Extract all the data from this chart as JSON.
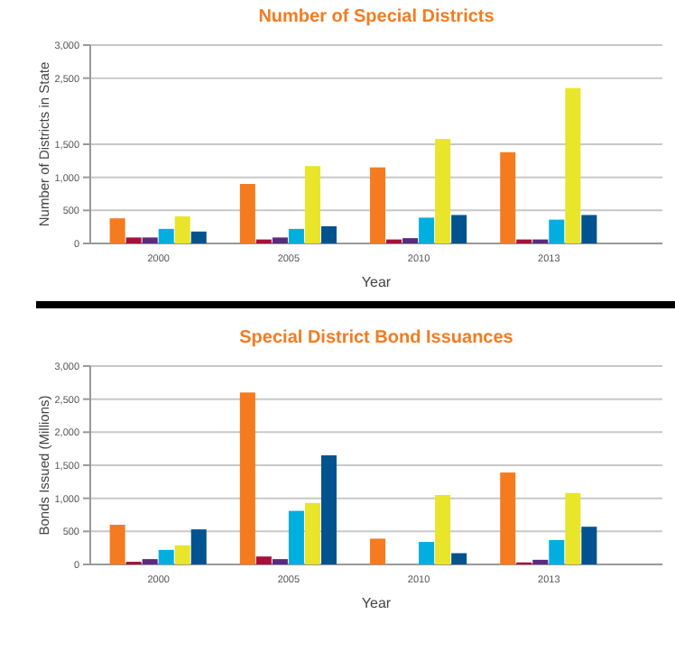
{
  "chart_data": [
    {
      "type": "bar",
      "title": "Number of Special Districts",
      "xlabel": "Year",
      "ylabel": "Number of Districts in State",
      "categories": [
        "2000",
        "2005",
        "2010",
        "2013"
      ],
      "ylim": [
        0,
        3000
      ],
      "yticks": [
        {
          "value": 0,
          "label": "0"
        },
        {
          "value": 500,
          "label": "500"
        },
        {
          "value": 1000,
          "label": "1,000"
        },
        {
          "value": 1500,
          "label": "1,500"
        },
        {
          "value": 2500,
          "label": "2,500"
        },
        {
          "value": 3000,
          "label": "3,000"
        }
      ],
      "grid": "y",
      "series": [
        {
          "color": "#f47b20",
          "values": [
            380,
            900,
            1150,
            1380
          ]
        },
        {
          "color": "#a3123a",
          "values": [
            90,
            60,
            60,
            60
          ]
        },
        {
          "color": "#5a2a7e",
          "values": [
            90,
            90,
            80,
            60
          ]
        },
        {
          "color": "#00aee0",
          "values": [
            220,
            220,
            390,
            360
          ]
        },
        {
          "color": "#e8e52a",
          "values": [
            410,
            1170,
            1580,
            2350
          ]
        },
        {
          "color": "#00538f",
          "values": [
            180,
            260,
            430,
            430
          ]
        }
      ]
    },
    {
      "type": "bar",
      "title": "Special District Bond Issuances",
      "xlabel": "Year",
      "ylabel": "Bonds Issued (Millions)",
      "categories": [
        "2000",
        "2005",
        "2010",
        "2013"
      ],
      "ylim": [
        0,
        3000
      ],
      "yticks": [
        {
          "value": 0,
          "label": "0"
        },
        {
          "value": 500,
          "label": "500"
        },
        {
          "value": 1000,
          "label": "1,000"
        },
        {
          "value": 1500,
          "label": "1,500"
        },
        {
          "value": 2000,
          "label": "2,000"
        },
        {
          "value": 2500,
          "label": "2,500"
        },
        {
          "value": 3000,
          "label": "3,000"
        }
      ],
      "grid": "y",
      "series": [
        {
          "color": "#f47b20",
          "values": [
            600,
            2600,
            390,
            1390
          ]
        },
        {
          "color": "#a3123a",
          "values": [
            40,
            120,
            null,
            30
          ]
        },
        {
          "color": "#5a2a7e",
          "values": [
            80,
            80,
            null,
            70
          ]
        },
        {
          "color": "#00aee0",
          "values": [
            220,
            810,
            340,
            370
          ]
        },
        {
          "color": "#e8e52a",
          "values": [
            290,
            930,
            1050,
            1080
          ]
        },
        {
          "color": "#00538f",
          "values": [
            530,
            1650,
            170,
            570
          ]
        }
      ]
    }
  ]
}
